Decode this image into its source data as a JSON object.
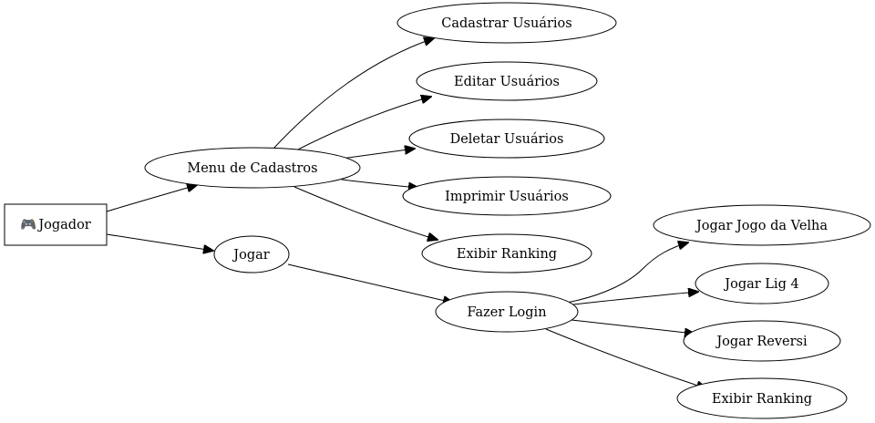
{
  "nodes": {
    "jogador": {
      "label": "Jogador",
      "icon": "user-icon",
      "icon_glyph": "🎮"
    },
    "menu_cadastros": {
      "label": "Menu de Cadastros"
    },
    "jogar": {
      "label": "Jogar"
    },
    "cadastrar_usuarios": {
      "label": "Cadastrar Usuários"
    },
    "editar_usuarios": {
      "label": "Editar Usuários"
    },
    "deletar_usuarios": {
      "label": "Deletar Usuários"
    },
    "imprimir_usuarios": {
      "label": "Imprimir Usuários"
    },
    "exibir_ranking_menu": {
      "label": "Exibir Ranking"
    },
    "fazer_login": {
      "label": "Fazer Login"
    },
    "jogar_jogo_da_velha": {
      "label": "Jogar Jogo da Velha"
    },
    "jogar_lig4": {
      "label": "Jogar Lig 4"
    },
    "jogar_reversi": {
      "label": "Jogar Reversi"
    },
    "exibir_ranking_login": {
      "label": "Exibir Ranking"
    }
  },
  "edges": [
    {
      "from": "jogador",
      "to": "menu_cadastros"
    },
    {
      "from": "jogador",
      "to": "jogar"
    },
    {
      "from": "menu_cadastros",
      "to": "cadastrar_usuarios"
    },
    {
      "from": "menu_cadastros",
      "to": "editar_usuarios"
    },
    {
      "from": "menu_cadastros",
      "to": "deletar_usuarios"
    },
    {
      "from": "menu_cadastros",
      "to": "imprimir_usuarios"
    },
    {
      "from": "menu_cadastros",
      "to": "exibir_ranking_menu"
    },
    {
      "from": "jogar",
      "to": "fazer_login"
    },
    {
      "from": "fazer_login",
      "to": "jogar_jogo_da_velha"
    },
    {
      "from": "fazer_login",
      "to": "jogar_lig4"
    },
    {
      "from": "fazer_login",
      "to": "jogar_reversi"
    },
    {
      "from": "fazer_login",
      "to": "exibir_ranking_login"
    }
  ]
}
